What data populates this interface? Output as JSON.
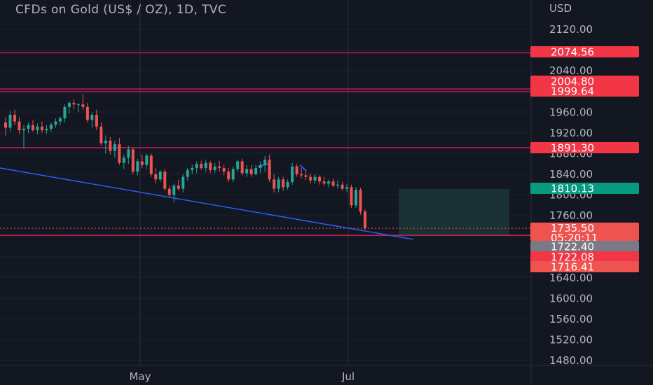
{
  "header": {
    "title": "CFDs on Gold (US$ / OZ), 1D, TVC",
    "currency": "USD"
  },
  "colors": {
    "background": "#131722",
    "grid": "#1e222d",
    "up": "#26a69a",
    "down": "#ef5350",
    "level_line": "#e91e63",
    "trendline": "#2962ff",
    "badge_pink": "#f23645",
    "badge_green": "#089981",
    "badge_red": "#ef5350",
    "badge_gray": "#787b86",
    "zone_fill": "#1c3b38"
  },
  "price_axis": {
    "min": 1460,
    "max": 2140,
    "ticks": [
      "2120.00",
      "2040.00",
      "1960.00",
      "1920.00",
      "1880.00",
      "1840.00",
      "1800.00",
      "1760.00",
      "1640.00",
      "1600.00",
      "1560.00",
      "1520.00",
      "1480.00"
    ]
  },
  "time_axis": {
    "labels": [
      "May",
      "Jul"
    ]
  },
  "levels": [
    {
      "label": "2074.56",
      "value": 2074.56
    },
    {
      "label": "2004.80",
      "value": 2004.8
    },
    {
      "label": "1999.64",
      "value": 1999.64
    },
    {
      "label": "1891.30",
      "value": 1891.3
    },
    {
      "label": "1722.08",
      "value": 1722.08
    }
  ],
  "price_badges": [
    {
      "label": "1810.13",
      "value": 1810.13,
      "color": "green"
    },
    {
      "label": "1735.50",
      "value": 1735.5,
      "color": "red",
      "countdown": "05:20:11"
    },
    {
      "label": "1722.40",
      "value": 1722.4,
      "color": "gray"
    },
    {
      "label": "1716.41",
      "value": 1716.41,
      "color": "red"
    }
  ],
  "chart_data": {
    "type": "candlestick",
    "title": "CFDs on Gold (US$ / OZ), 1D, TVC",
    "ylabel": "USD",
    "ylim": [
      1460,
      2140
    ],
    "x_labels": [
      "May",
      "Jul"
    ],
    "candles": [
      {
        "o": 1940,
        "h": 1950,
        "l": 1915,
        "c": 1930
      },
      {
        "o": 1930,
        "h": 1962,
        "l": 1922,
        "c": 1955
      },
      {
        "o": 1955,
        "h": 1965,
        "l": 1935,
        "c": 1942
      },
      {
        "o": 1942,
        "h": 1950,
        "l": 1918,
        "c": 1925
      },
      {
        "o": 1925,
        "h": 1935,
        "l": 1890,
        "c": 1928
      },
      {
        "o": 1928,
        "h": 1940,
        "l": 1920,
        "c": 1935
      },
      {
        "o": 1935,
        "h": 1945,
        "l": 1922,
        "c": 1925
      },
      {
        "o": 1925,
        "h": 1938,
        "l": 1918,
        "c": 1932
      },
      {
        "o": 1932,
        "h": 1942,
        "l": 1920,
        "c": 1925
      },
      {
        "o": 1925,
        "h": 1935,
        "l": 1918,
        "c": 1928
      },
      {
        "o": 1928,
        "h": 1940,
        "l": 1922,
        "c": 1936
      },
      {
        "o": 1936,
        "h": 1948,
        "l": 1930,
        "c": 1942
      },
      {
        "o": 1942,
        "h": 1952,
        "l": 1935,
        "c": 1948
      },
      {
        "o": 1948,
        "h": 1975,
        "l": 1940,
        "c": 1970
      },
      {
        "o": 1970,
        "h": 1982,
        "l": 1958,
        "c": 1978
      },
      {
        "o": 1978,
        "h": 1985,
        "l": 1965,
        "c": 1975
      },
      {
        "o": 1975,
        "h": 1978,
        "l": 1960,
        "c": 1975
      },
      {
        "o": 1975,
        "h": 1995,
        "l": 1965,
        "c": 1970
      },
      {
        "o": 1970,
        "h": 1978,
        "l": 1940,
        "c": 1945
      },
      {
        "o": 1945,
        "h": 1960,
        "l": 1930,
        "c": 1955
      },
      {
        "o": 1955,
        "h": 1965,
        "l": 1925,
        "c": 1932
      },
      {
        "o": 1932,
        "h": 1940,
        "l": 1895,
        "c": 1900
      },
      {
        "o": 1900,
        "h": 1915,
        "l": 1880,
        "c": 1905
      },
      {
        "o": 1905,
        "h": 1912,
        "l": 1878,
        "c": 1885
      },
      {
        "o": 1885,
        "h": 1905,
        "l": 1872,
        "c": 1898
      },
      {
        "o": 1898,
        "h": 1910,
        "l": 1858,
        "c": 1862
      },
      {
        "o": 1862,
        "h": 1878,
        "l": 1850,
        "c": 1872
      },
      {
        "o": 1872,
        "h": 1895,
        "l": 1860,
        "c": 1888
      },
      {
        "o": 1888,
        "h": 1892,
        "l": 1840,
        "c": 1845
      },
      {
        "o": 1845,
        "h": 1870,
        "l": 1838,
        "c": 1865
      },
      {
        "o": 1865,
        "h": 1878,
        "l": 1852,
        "c": 1858
      },
      {
        "o": 1858,
        "h": 1880,
        "l": 1850,
        "c": 1876
      },
      {
        "o": 1876,
        "h": 1880,
        "l": 1835,
        "c": 1840
      },
      {
        "o": 1840,
        "h": 1852,
        "l": 1822,
        "c": 1830
      },
      {
        "o": 1830,
        "h": 1848,
        "l": 1825,
        "c": 1845
      },
      {
        "o": 1845,
        "h": 1850,
        "l": 1808,
        "c": 1812
      },
      {
        "o": 1812,
        "h": 1818,
        "l": 1795,
        "c": 1800
      },
      {
        "o": 1800,
        "h": 1822,
        "l": 1785,
        "c": 1818
      },
      {
        "o": 1818,
        "h": 1830,
        "l": 1808,
        "c": 1812
      },
      {
        "o": 1812,
        "h": 1840,
        "l": 1805,
        "c": 1835
      },
      {
        "o": 1835,
        "h": 1852,
        "l": 1828,
        "c": 1848
      },
      {
        "o": 1848,
        "h": 1858,
        "l": 1840,
        "c": 1852
      },
      {
        "o": 1852,
        "h": 1865,
        "l": 1842,
        "c": 1860
      },
      {
        "o": 1860,
        "h": 1866,
        "l": 1848,
        "c": 1852
      },
      {
        "o": 1852,
        "h": 1868,
        "l": 1845,
        "c": 1862
      },
      {
        "o": 1862,
        "h": 1866,
        "l": 1842,
        "c": 1848
      },
      {
        "o": 1848,
        "h": 1862,
        "l": 1842,
        "c": 1855
      },
      {
        "o": 1855,
        "h": 1866,
        "l": 1845,
        "c": 1852
      },
      {
        "o": 1852,
        "h": 1858,
        "l": 1838,
        "c": 1845
      },
      {
        "o": 1845,
        "h": 1852,
        "l": 1825,
        "c": 1830
      },
      {
        "o": 1830,
        "h": 1855,
        "l": 1825,
        "c": 1850
      },
      {
        "o": 1850,
        "h": 1868,
        "l": 1845,
        "c": 1865
      },
      {
        "o": 1865,
        "h": 1870,
        "l": 1838,
        "c": 1842
      },
      {
        "o": 1842,
        "h": 1858,
        "l": 1835,
        "c": 1850
      },
      {
        "o": 1850,
        "h": 1858,
        "l": 1835,
        "c": 1840
      },
      {
        "o": 1840,
        "h": 1858,
        "l": 1838,
        "c": 1852
      },
      {
        "o": 1852,
        "h": 1865,
        "l": 1842,
        "c": 1858
      },
      {
        "o": 1858,
        "h": 1875,
        "l": 1845,
        "c": 1868
      },
      {
        "o": 1868,
        "h": 1878,
        "l": 1825,
        "c": 1830
      },
      {
        "o": 1830,
        "h": 1840,
        "l": 1805,
        "c": 1812
      },
      {
        "o": 1812,
        "h": 1835,
        "l": 1805,
        "c": 1830
      },
      {
        "o": 1830,
        "h": 1835,
        "l": 1808,
        "c": 1815
      },
      {
        "o": 1815,
        "h": 1830,
        "l": 1810,
        "c": 1825
      },
      {
        "o": 1825,
        "h": 1862,
        "l": 1820,
        "c": 1855
      },
      {
        "o": 1855,
        "h": 1860,
        "l": 1835,
        "c": 1840
      },
      {
        "o": 1840,
        "h": 1852,
        "l": 1832,
        "c": 1838
      },
      {
        "o": 1838,
        "h": 1848,
        "l": 1828,
        "c": 1835
      },
      {
        "o": 1835,
        "h": 1842,
        "l": 1822,
        "c": 1828
      },
      {
        "o": 1828,
        "h": 1840,
        "l": 1822,
        "c": 1835
      },
      {
        "o": 1835,
        "h": 1838,
        "l": 1820,
        "c": 1826
      },
      {
        "o": 1826,
        "h": 1835,
        "l": 1818,
        "c": 1822
      },
      {
        "o": 1822,
        "h": 1830,
        "l": 1815,
        "c": 1826
      },
      {
        "o": 1826,
        "h": 1832,
        "l": 1815,
        "c": 1818
      },
      {
        "o": 1818,
        "h": 1828,
        "l": 1812,
        "c": 1820
      },
      {
        "o": 1820,
        "h": 1826,
        "l": 1808,
        "c": 1812
      },
      {
        "o": 1812,
        "h": 1822,
        "l": 1805,
        "c": 1815
      },
      {
        "o": 1815,
        "h": 1820,
        "l": 1775,
        "c": 1780
      },
      {
        "o": 1780,
        "h": 1815,
        "l": 1775,
        "c": 1810
      },
      {
        "o": 1810,
        "h": 1814,
        "l": 1762,
        "c": 1768
      },
      {
        "o": 1768,
        "h": 1772,
        "l": 1732,
        "c": 1735.5
      }
    ]
  }
}
